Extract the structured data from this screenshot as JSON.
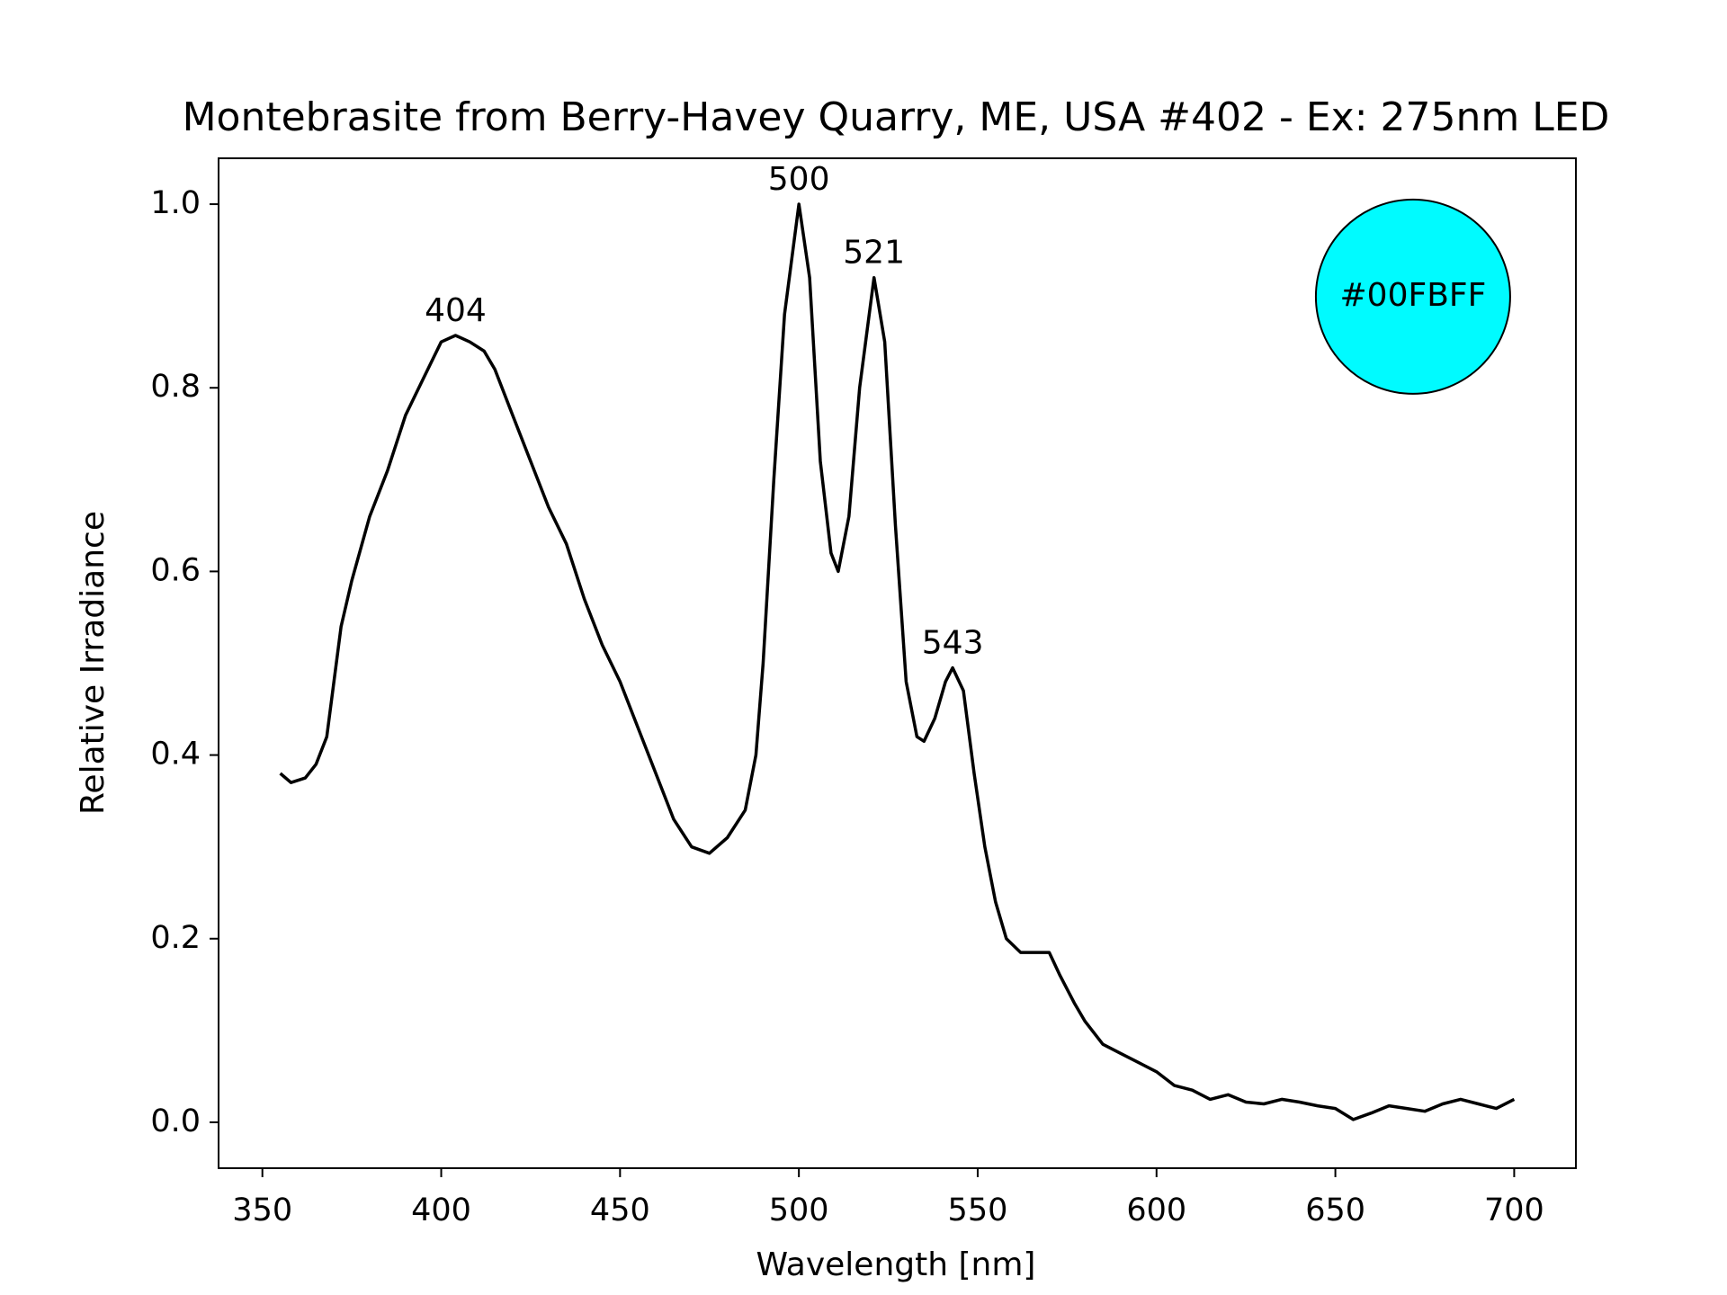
{
  "chart_data": {
    "type": "line",
    "title": "Montebrasite from Berry-Havey Quarry, ME, USA #402 - Ex: 275nm LED",
    "x_label": "Wavelength [nm]",
    "y_label": "Relative Irradiance",
    "x": [
      355,
      358,
      362,
      365,
      368,
      372,
      375,
      380,
      385,
      390,
      395,
      400,
      404,
      408,
      412,
      415,
      420,
      425,
      430,
      435,
      440,
      445,
      450,
      455,
      460,
      465,
      470,
      475,
      480,
      485,
      488,
      490,
      493,
      496,
      500,
      503,
      506,
      509,
      511,
      514,
      517,
      521,
      524,
      527,
      530,
      533,
      535,
      538,
      541,
      543,
      546,
      549,
      552,
      555,
      558,
      562,
      570,
      573,
      577,
      580,
      585,
      590,
      595,
      600,
      605,
      610,
      615,
      620,
      625,
      630,
      635,
      640,
      645,
      650,
      655,
      660,
      665,
      670,
      675,
      680,
      685,
      690,
      695,
      700
    ],
    "series": [
      {
        "name": "Relative Irradiance",
        "color": "#000000",
        "values": [
          0.38,
          0.37,
          0.375,
          0.39,
          0.42,
          0.54,
          0.59,
          0.66,
          0.71,
          0.77,
          0.81,
          0.85,
          0.857,
          0.85,
          0.84,
          0.82,
          0.77,
          0.72,
          0.67,
          0.63,
          0.57,
          0.52,
          0.48,
          0.43,
          0.38,
          0.33,
          0.3,
          0.293,
          0.31,
          0.34,
          0.4,
          0.5,
          0.7,
          0.88,
          1.0,
          0.92,
          0.72,
          0.62,
          0.6,
          0.66,
          0.8,
          0.92,
          0.85,
          0.65,
          0.48,
          0.42,
          0.415,
          0.44,
          0.48,
          0.495,
          0.47,
          0.38,
          0.3,
          0.24,
          0.2,
          0.185,
          0.185,
          0.16,
          0.13,
          0.11,
          0.085,
          0.075,
          0.065,
          0.055,
          0.04,
          0.035,
          0.025,
          0.03,
          0.022,
          0.02,
          0.025,
          0.022,
          0.018,
          0.015,
          0.003,
          0.01,
          0.018,
          0.015,
          0.012,
          0.02,
          0.025,
          0.02,
          0.015,
          0.025
        ]
      }
    ],
    "annotations": [
      {
        "x": 404,
        "y": 0.857
      },
      {
        "x": 500,
        "y": 1.0
      },
      {
        "x": 521,
        "y": 0.92
      },
      {
        "x": 543,
        "y": 0.495
      }
    ],
    "swatch": {
      "label": "#00FBFF",
      "color": "#00FBFF"
    },
    "xlim": [
      337.75,
      717.25
    ],
    "xticks": [
      350,
      400,
      450,
      500,
      550,
      600,
      650,
      700
    ],
    "ylim": [
      -0.05,
      1.05
    ],
    "yticks": [
      {
        "value": 0,
        "label": "0.0"
      },
      0.2,
      0.4,
      0.6,
      0.8,
      {
        "value": 1,
        "label": "1.0"
      }
    ],
    "grid": false
  }
}
